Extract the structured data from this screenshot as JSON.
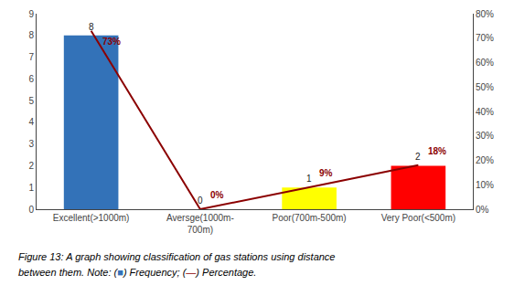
{
  "chart_data": {
    "type": "bar",
    "categories": [
      "Excellent(>1000m)",
      "Aversge(1000m-\n700m)",
      "Poor(700m-500m)",
      "Very Poor(<500m)"
    ],
    "series": [
      {
        "type": "bar",
        "colors": [
          "#3372b8",
          "#3372b8",
          "#ffff00",
          "#ff0000"
        ],
        "values": [
          8,
          0,
          1,
          2
        ]
      },
      {
        "type": "line",
        "color": "#8b0000",
        "axis": "y2",
        "values": [
          73,
          0,
          9,
          18
        ],
        "value_labels": [
          "73%",
          "0%",
          "9%",
          "18%"
        ]
      }
    ],
    "ylim": [
      0,
      9
    ],
    "yticks": [
      0,
      1,
      2,
      3,
      4,
      5,
      6,
      7,
      8,
      9
    ],
    "y2lim": [
      0,
      80
    ],
    "y2ticks": [
      {
        "value": 0,
        "label": "0%"
      },
      {
        "value": 10,
        "label": "10%"
      },
      {
        "value": 20,
        "label": "20%"
      },
      {
        "value": 30,
        "label": "30%"
      },
      {
        "value": 40,
        "label": "40%"
      },
      {
        "value": 50,
        "label": "50%"
      },
      {
        "value": 60,
        "label": "60%"
      },
      {
        "value": 70,
        "label": "70%"
      },
      {
        "value": 80,
        "label": "80%"
      }
    ],
    "grid": false,
    "data_labels": true,
    "annotations": [
      {
        "text": "Figure 13: A graph showing classification of gas stations using distance"
      },
      {
        "text": "between them. Note: ("
      },
      {
        "text": "■",
        "color": "#3372b8"
      },
      {
        "text": ") Frequency; ("
      },
      {
        "text": "—",
        "color": "#8b0000"
      },
      {
        "text": ") Percentage."
      }
    ]
  }
}
